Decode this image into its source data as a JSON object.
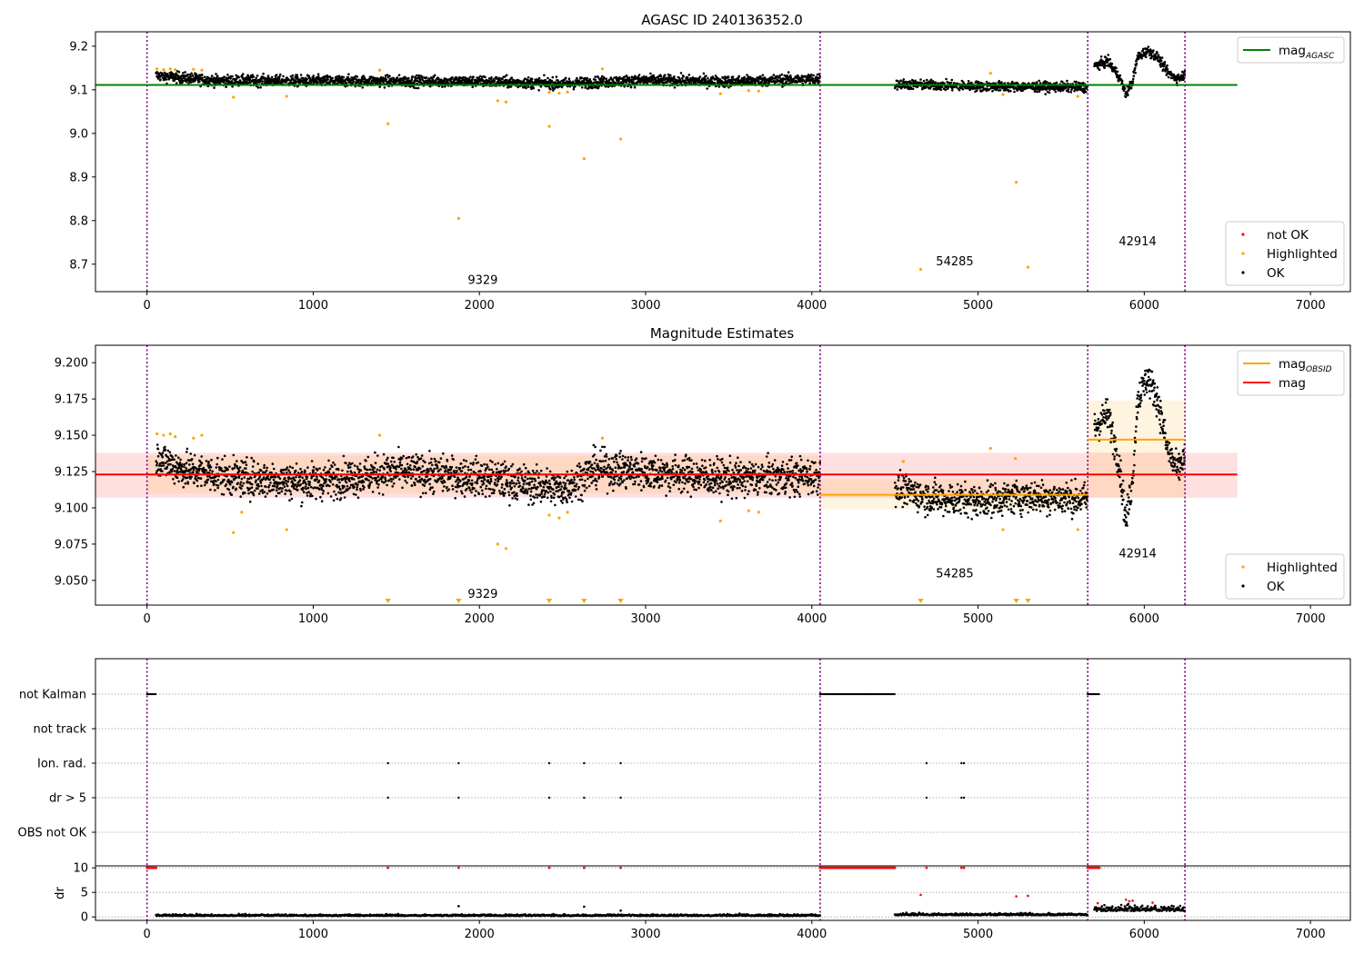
{
  "chart_data": [
    {
      "id": "agasc",
      "type": "scatter",
      "title": "AGASC ID 240136352.0",
      "xlim": [
        -310,
        7240
      ],
      "ylim": [
        8.637,
        9.233
      ],
      "x_ticks": [
        0,
        1000,
        2000,
        3000,
        4000,
        5000,
        6000,
        7000
      ],
      "y_ticks": [
        8.7,
        8.8,
        8.9,
        9.0,
        9.1,
        9.2
      ],
      "y_tick_labels": [
        "8.7",
        "8.8",
        "8.9",
        "9.0",
        "9.1",
        "9.2"
      ],
      "obsid_boundaries": [
        0,
        4050,
        5660,
        6245
      ],
      "obsid_labels": [
        {
          "text": "9329",
          "x": 2020,
          "y": 8.655
        },
        {
          "text": "54285",
          "x": 4860,
          "y": 8.697
        },
        {
          "text": "42914",
          "x": 5960,
          "y": 8.743
        }
      ],
      "reference_lines": [
        {
          "name": "mag_AGASC",
          "y": 9.111,
          "x_range": [
            -310,
            6560
          ],
          "color": "#008000"
        }
      ],
      "point_groups": [
        {
          "name": "OK",
          "color": "#000000",
          "segments": [
            {
              "x_range": [
                55,
                4050
              ],
              "kind": "trend",
              "knots": [
                [
                  55,
                  9.133
                ],
                [
                  400,
                  9.121
                ],
                [
                  2000,
                  9.119
                ],
                [
                  2500,
                  9.114
                ],
                [
                  3000,
                  9.122
                ],
                [
                  3500,
                  9.119
                ],
                [
                  4050,
                  9.125
                ]
              ],
              "noise": 0.009
            },
            {
              "x_range": [
                4500,
                5660
              ],
              "kind": "trend",
              "knots": [
                [
                  4500,
                  9.113
                ],
                [
                  5000,
                  9.108
                ],
                [
                  5660,
                  9.106
                ]
              ],
              "noise": 0.008
            },
            {
              "x_range": [
                5700,
                6245
              ],
              "kind": "wave",
              "knots": [
                [
                  5700,
                  9.155
                ],
                [
                  5780,
                  9.165
                ],
                [
                  5850,
                  9.13
                ],
                [
                  5890,
                  9.09
                ],
                [
                  5930,
                  9.12
                ],
                [
                  5960,
                  9.175
                ],
                [
                  6020,
                  9.19
                ],
                [
                  6080,
                  9.175
                ],
                [
                  6140,
                  9.14
                ],
                [
                  6200,
                  9.125
                ],
                [
                  6245,
                  9.135
                ]
              ],
              "noise": 0.008
            }
          ]
        },
        {
          "name": "Highlighted",
          "color": "#FFA500",
          "points": [
            [
              60,
              9.148
            ],
            [
              100,
              9.146
            ],
            [
              140,
              9.148
            ],
            [
              170,
              9.146
            ],
            [
              280,
              9.147
            ],
            [
              330,
              9.145
            ],
            [
              520,
              9.083
            ],
            [
              840,
              9.085
            ],
            [
              1400,
              9.145
            ],
            [
              1450,
              9.022
            ],
            [
              1875,
              8.805
            ],
            [
              2110,
              9.075
            ],
            [
              2160,
              9.072
            ],
            [
              2420,
              9.016
            ],
            [
              2420,
              9.094
            ],
            [
              2480,
              9.092
            ],
            [
              2530,
              9.095
            ],
            [
              2630,
              8.942
            ],
            [
              2740,
              9.148
            ],
            [
              2850,
              8.987
            ],
            [
              3450,
              9.091
            ],
            [
              3620,
              9.098
            ],
            [
              3680,
              9.097
            ],
            [
              4655,
              8.688
            ],
            [
              5075,
              9.138
            ],
            [
              5150,
              9.089
            ],
            [
              5230,
              8.888
            ],
            [
              5300,
              8.693
            ],
            [
              5600,
              9.085
            ]
          ]
        }
      ],
      "legend": {
        "position": "upper right",
        "entries": [
          {
            "label": "mag",
            "subscript": "AGASC",
            "color": "#008000",
            "kind": "line"
          }
        ]
      },
      "legend2": {
        "position": "lower right",
        "entries": [
          {
            "label": "not OK",
            "color": "#FF0000",
            "kind": "point"
          },
          {
            "label": "Highlighted",
            "color": "#FFA500",
            "kind": "point"
          },
          {
            "label": "OK",
            "color": "#000000",
            "kind": "point"
          }
        ]
      }
    },
    {
      "id": "estimates",
      "type": "scatter",
      "title": "Magnitude Estimates",
      "xlim": [
        -310,
        7240
      ],
      "ylim": [
        9.033,
        9.212
      ],
      "x_ticks": [
        0,
        1000,
        2000,
        3000,
        4000,
        5000,
        6000,
        7000
      ],
      "y_ticks": [
        9.05,
        9.075,
        9.1,
        9.125,
        9.15,
        9.175,
        9.2
      ],
      "y_tick_labels": [
        "9.050",
        "9.075",
        "9.100",
        "9.125",
        "9.150",
        "9.175",
        "9.200"
      ],
      "obsid_boundaries": [
        0,
        4050,
        5660,
        6245
      ],
      "obsid_labels": [
        {
          "text": "9329",
          "x": 2020,
          "y": 9.038
        },
        {
          "text": "54285",
          "x": 4860,
          "y": 9.052
        },
        {
          "text": "42914",
          "x": 5960,
          "y": 9.066
        }
      ],
      "bands": [
        {
          "x_range": [
            -310,
            6560
          ],
          "y_range": [
            9.107,
            9.138
          ],
          "color": "#FF0000",
          "opacity": 0.12
        },
        {
          "x_range": [
            0,
            4050
          ],
          "y_range": [
            9.11,
            9.136
          ],
          "color": "#FFA500",
          "opacity": 0.12
        },
        {
          "x_range": [
            4050,
            5660
          ],
          "y_range": [
            9.099,
            9.12
          ],
          "color": "#FFA500",
          "opacity": 0.12
        },
        {
          "x_range": [
            5660,
            6245
          ],
          "y_range": [
            9.107,
            9.174
          ],
          "color": "#FFA500",
          "opacity": 0.12
        }
      ],
      "reference_lines": [
        {
          "name": "mag_OBSID",
          "y": 9.123,
          "x_range": [
            0,
            4050
          ],
          "color": "#FFA500"
        },
        {
          "name": "mag_OBSID",
          "y": 9.109,
          "x_range": [
            4050,
            5660
          ],
          "color": "#FFA500"
        },
        {
          "name": "mag_OBSID",
          "y": 9.147,
          "x_range": [
            5660,
            6245
          ],
          "color": "#FFA500"
        },
        {
          "name": "mag",
          "y": 9.123,
          "x_range": [
            -310,
            6560
          ],
          "color": "#FF0000"
        }
      ],
      "point_groups": [
        {
          "name": "OK",
          "color": "#000000",
          "segments": [
            {
              "x_range": [
                55,
                4050
              ],
              "kind": "trend",
              "knots": [
                [
                  55,
                  9.135
                ],
                [
                  200,
                  9.127
                ],
                [
                  500,
                  9.121
                ],
                [
                  1000,
                  9.118
                ],
                [
                  1500,
                  9.125
                ],
                [
                  2000,
                  9.121
                ],
                [
                  2500,
                  9.113
                ],
                [
                  2700,
                  9.127
                ],
                [
                  3000,
                  9.125
                ],
                [
                  3500,
                  9.12
                ],
                [
                  4050,
                  9.122
                ]
              ],
              "noise": 0.009
            },
            {
              "x_range": [
                4500,
                5660
              ],
              "kind": "trend",
              "knots": [
                [
                  4500,
                  9.114
                ],
                [
                  4700,
                  9.107
                ],
                [
                  5000,
                  9.105
                ],
                [
                  5300,
                  9.108
                ],
                [
                  5660,
                  9.106
                ]
              ],
              "noise": 0.008
            },
            {
              "x_range": [
                5700,
                6245
              ],
              "kind": "wave",
              "knots": [
                [
                  5700,
                  9.155
                ],
                [
                  5780,
                  9.165
                ],
                [
                  5850,
                  9.13
                ],
                [
                  5890,
                  9.09
                ],
                [
                  5930,
                  9.12
                ],
                [
                  5960,
                  9.175
                ],
                [
                  6020,
                  9.19
                ],
                [
                  6080,
                  9.175
                ],
                [
                  6140,
                  9.14
                ],
                [
                  6200,
                  9.125
                ],
                [
                  6245,
                  9.135
                ]
              ],
              "noise": 0.008
            }
          ]
        },
        {
          "name": "Highlighted",
          "color": "#FFA500",
          "points": [
            [
              60,
              9.151
            ],
            [
              100,
              9.15
            ],
            [
              140,
              9.151
            ],
            [
              170,
              9.149
            ],
            [
              280,
              9.148
            ],
            [
              330,
              9.15
            ],
            [
              520,
              9.083
            ],
            [
              570,
              9.097
            ],
            [
              840,
              9.085
            ],
            [
              1400,
              9.15
            ],
            [
              2110,
              9.075
            ],
            [
              2160,
              9.072
            ],
            [
              2420,
              9.095
            ],
            [
              2480,
              9.093
            ],
            [
              2530,
              9.097
            ],
            [
              2740,
              9.148
            ],
            [
              3450,
              9.091
            ],
            [
              3620,
              9.098
            ],
            [
              3680,
              9.097
            ],
            [
              4550,
              9.132
            ],
            [
              5075,
              9.141
            ],
            [
              5150,
              9.085
            ],
            [
              5225,
              9.134
            ],
            [
              5600,
              9.085
            ]
          ]
        },
        {
          "name": "Highlighted (below axis)",
          "color": "#FFA500",
          "marker": "triangle-down",
          "points": [
            [
              1450,
              9.035
            ],
            [
              1875,
              9.035
            ],
            [
              2420,
              9.035
            ],
            [
              2630,
              9.035
            ],
            [
              2850,
              9.035
            ],
            [
              4655,
              9.035
            ],
            [
              5230,
              9.035
            ],
            [
              5300,
              9.035
            ]
          ]
        }
      ],
      "legend": {
        "position": "upper right",
        "entries": [
          {
            "label": "mag",
            "subscript": "OBSID",
            "color": "#FFA500",
            "kind": "line"
          },
          {
            "label": "mag",
            "color": "#FF0000",
            "kind": "line"
          }
        ]
      },
      "legend2": {
        "position": "lower right",
        "entries": [
          {
            "label": "Highlighted",
            "color": "#FFA500",
            "kind": "point"
          },
          {
            "label": "OK",
            "color": "#000000",
            "kind": "point"
          }
        ]
      }
    },
    {
      "id": "flags",
      "type": "scatter",
      "xlim": [
        -310,
        7240
      ],
      "categories": [
        "OBS not OK",
        "dr > 5",
        "Ion. rad.",
        "not track",
        "not Kalman"
      ],
      "obsid_boundaries": [
        0,
        4050,
        5660,
        6245
      ],
      "flag_ranges": [
        {
          "category": "not Kalman",
          "x_range": [
            0,
            55
          ]
        },
        {
          "category": "not Kalman",
          "x_range": [
            4050,
            4500
          ]
        },
        {
          "category": "not Kalman",
          "x_range": [
            5660,
            5730
          ]
        }
      ],
      "flag_points": [
        {
          "category": "Ion. rad.",
          "x": [
            1450,
            1875,
            2420,
            2630,
            2850,
            4690,
            4900,
            4915
          ]
        },
        {
          "category": "dr > 5",
          "x": [
            1450,
            1875,
            2420,
            2630,
            2850,
            4690,
            4900,
            4915
          ]
        }
      ]
    },
    {
      "id": "dr",
      "type": "scatter",
      "ylabel": "dr",
      "xlim": [
        -310,
        7240
      ],
      "ylim": [
        -0.7,
        10.4
      ],
      "x_ticks": [
        0,
        1000,
        2000,
        3000,
        4000,
        5000,
        6000,
        7000
      ],
      "y_ticks": [
        0,
        5,
        10
      ],
      "obsid_boundaries": [
        0,
        4050,
        5660,
        6245
      ],
      "point_groups": [
        {
          "name": "OK",
          "color": "#000000",
          "segments": [
            {
              "x_range": [
                55,
                4050
              ],
              "kind": "noise",
              "base": 0.2,
              "noise": 0.22
            },
            {
              "x_range": [
                4500,
                5660
              ],
              "kind": "noise",
              "base": 0.35,
              "noise": 0.25
            },
            {
              "x_range": [
                5700,
                6245
              ],
              "kind": "noise",
              "base": 1.2,
              "noise": 0.9
            }
          ],
          "points": [
            [
              1875,
              2.2
            ],
            [
              2630,
              2.1
            ],
            [
              2850,
              1.3
            ]
          ]
        },
        {
          "name": "not OK",
          "color": "#FF0000",
          "y_const": 10,
          "x_ranges": [
            [
              0,
              55
            ],
            [
              4050,
              4500
            ],
            [
              5660,
              5730
            ]
          ],
          "x_values": [
            1450,
            1875,
            2420,
            2630,
            2850,
            4690,
            4900,
            4915
          ],
          "points": [
            [
              4655,
              4.5
            ],
            [
              5230,
              4.2
            ],
            [
              5300,
              4.3
            ],
            [
              5720,
              2.8
            ],
            [
              5890,
              3.5
            ],
            [
              5910,
              3.2
            ],
            [
              5930,
              3.3
            ],
            [
              6050,
              2.9
            ]
          ]
        }
      ]
    }
  ]
}
